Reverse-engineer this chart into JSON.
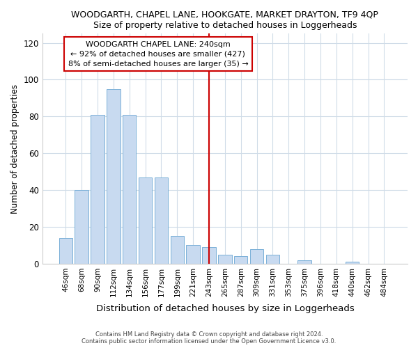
{
  "title": "WOODGARTH, CHAPEL LANE, HOOKGATE, MARKET DRAYTON, TF9 4QP",
  "subtitle": "Size of property relative to detached houses in Loggerheads",
  "xlabel": "Distribution of detached houses by size in Loggerheads",
  "ylabel": "Number of detached properties",
  "bar_labels": [
    "46sqm",
    "68sqm",
    "90sqm",
    "112sqm",
    "134sqm",
    "156sqm",
    "177sqm",
    "199sqm",
    "221sqm",
    "243sqm",
    "265sqm",
    "287sqm",
    "309sqm",
    "331sqm",
    "353sqm",
    "375sqm",
    "396sqm",
    "418sqm",
    "440sqm",
    "462sqm",
    "484sqm"
  ],
  "bar_values": [
    14,
    40,
    81,
    95,
    81,
    47,
    47,
    15,
    10,
    9,
    5,
    4,
    8,
    5,
    0,
    2,
    0,
    0,
    1,
    0,
    0
  ],
  "bar_color": "#c8daf0",
  "bar_edge_color": "#7ab0d8",
  "vline_x": 9.0,
  "vline_color": "#cc0000",
  "ylim": [
    0,
    125
  ],
  "yticks": [
    0,
    20,
    40,
    60,
    80,
    100,
    120
  ],
  "annotation_title": "WOODGARTH CHAPEL LANE: 240sqm",
  "annotation_line1": "← 92% of detached houses are smaller (427)",
  "annotation_line2": "8% of semi-detached houses are larger (35) →",
  "annotation_box_color": "#ffffff",
  "annotation_box_edge": "#cc0000",
  "footer1": "Contains HM Land Registry data © Crown copyright and database right 2024.",
  "footer2": "Contains public sector information licensed under the Open Government Licence v3.0.",
  "background_color": "#ffffff",
  "plot_background": "#ffffff",
  "grid_color": "#d0dce8"
}
